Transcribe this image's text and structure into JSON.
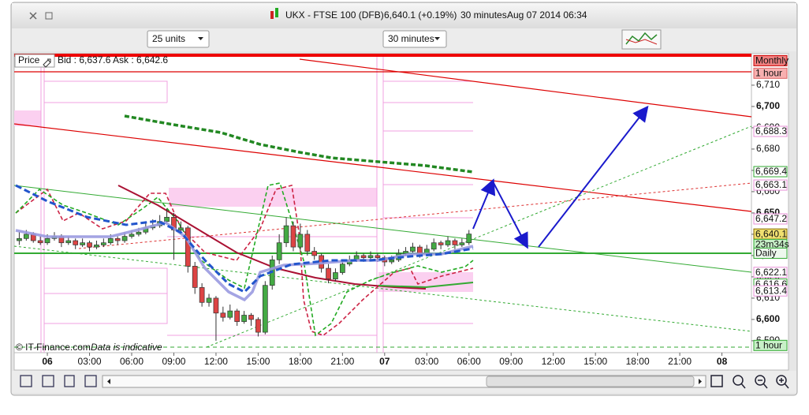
{
  "window": {
    "symbol": "UKX - FTSE 100 (DFB)",
    "price": "6,640.1 (+0.19%)",
    "period": "30 minutes",
    "date": "Aug 07 2014 06:34"
  },
  "toolbar": {
    "units_select": "25 units",
    "period_select": "30 minutes"
  },
  "chart_data": {
    "type": "candlestick",
    "legend_label": "Price",
    "quote": "Bid : 6,637.6 Ask : 6,642.6",
    "credit": "© IT-Finance.com",
    "disclaimer": "Data is indicative",
    "up_color": "#44aa44",
    "down_color": "#dd4444",
    "xlim": [
      -2.36,
      50.1
    ],
    "ylim": [
      6584.4,
      6724.8
    ],
    "xticks": [
      {
        "value": 0,
        "label": "06"
      },
      {
        "value": 3,
        "label": "03:00"
      },
      {
        "value": 6,
        "label": "06:00"
      },
      {
        "value": 9,
        "label": "09:00"
      },
      {
        "value": 12,
        "label": "12:00"
      },
      {
        "value": 15,
        "label": "15:00"
      },
      {
        "value": 18,
        "label": "18:00"
      },
      {
        "value": 21,
        "label": "21:00"
      },
      {
        "value": 24,
        "label": "07"
      },
      {
        "value": 27,
        "label": "03:00"
      },
      {
        "value": 30,
        "label": "06:00"
      },
      {
        "value": 33,
        "label": "09:00"
      },
      {
        "value": 36,
        "label": "12:00"
      },
      {
        "value": 39,
        "label": "15:00"
      },
      {
        "value": 42,
        "label": "18:00"
      },
      {
        "value": 45,
        "label": "21:00"
      },
      {
        "value": 48,
        "label": "08"
      }
    ],
    "yticks": [
      {
        "value": 6590,
        "label": "6,590"
      },
      {
        "value": 6600,
        "label": "6,600"
      },
      {
        "value": 6610,
        "label": "6,610"
      },
      {
        "value": 6620,
        "label": "6,620"
      },
      {
        "value": 6630,
        "label": "6,630"
      },
      {
        "value": 6640,
        "label": "6,640"
      },
      {
        "value": 6650,
        "label": "6,650"
      },
      {
        "value": 6660,
        "label": "6,660"
      },
      {
        "value": 6670,
        "label": "6,670"
      },
      {
        "value": 6680,
        "label": "6,680"
      },
      {
        "value": 6690,
        "label": "6,690"
      },
      {
        "value": 6700,
        "label": "6,700"
      },
      {
        "value": 6710,
        "label": "6,710"
      }
    ],
    "x": [
      -2,
      -1.5,
      -1,
      -0.5,
      0,
      0.5,
      1,
      1.5,
      2,
      2.5,
      3,
      3.5,
      4,
      4.5,
      5,
      5.5,
      6,
      6.5,
      7,
      7.5,
      8,
      8.5,
      9,
      9.5,
      10,
      10.5,
      11,
      11.5,
      12,
      12.5,
      13,
      13.5,
      14,
      14.5,
      15,
      15.5,
      16,
      16.5,
      17,
      17.5,
      18,
      18.5,
      19,
      19.5,
      20,
      20.5,
      21,
      21.5,
      22,
      22.5,
      23,
      23.5,
      24,
      24.5,
      25,
      25.5,
      26,
      26.5,
      27,
      27.5,
      28,
      28.5,
      29,
      29.5,
      30
    ],
    "ohlc": [
      [
        6637,
        6641,
        6635,
        6638
      ],
      [
        6638,
        6642,
        6637,
        6640
      ],
      [
        6640,
        6641,
        6636,
        6637
      ],
      [
        6637,
        6639,
        6635,
        6636
      ],
      [
        6636,
        6640,
        6635,
        6638
      ],
      [
        6638,
        6641,
        6637,
        6639
      ],
      [
        6639,
        6640,
        6634,
        6636
      ],
      [
        6636,
        6639,
        6635,
        6637
      ],
      [
        6637,
        6638,
        6633,
        6635
      ],
      [
        6635,
        6638,
        6634,
        6636
      ],
      [
        6636,
        6637,
        6632,
        6634
      ],
      [
        6634,
        6637,
        6633,
        6635
      ],
      [
        6635,
        6638,
        6634,
        6636
      ],
      [
        6636,
        6640,
        6635,
        6638
      ],
      [
        6638,
        6639,
        6635,
        6637
      ],
      [
        6637,
        6641,
        6636,
        6639
      ],
      [
        6639,
        6642,
        6638,
        6640
      ],
      [
        6640,
        6643,
        6639,
        6641
      ],
      [
        6641,
        6646,
        6640,
        6643
      ],
      [
        6643,
        6647,
        6642,
        6644
      ],
      [
        6644,
        6649,
        6643,
        6646
      ],
      [
        6646,
        6652,
        6645,
        6648
      ],
      [
        6648,
        6650,
        6628,
        6642
      ],
      [
        6642,
        6646,
        6640,
        6643
      ],
      [
        6643,
        6644,
        6622,
        6625
      ],
      [
        6625,
        6627,
        6612,
        6615
      ],
      [
        6615,
        6617,
        6606,
        6608
      ],
      [
        6608,
        6612,
        6606,
        6610
      ],
      [
        6610,
        6611,
        6590,
        6603
      ],
      [
        6603,
        6606,
        6599,
        6601
      ],
      [
        6601,
        6607,
        6600,
        6604
      ],
      [
        6604,
        6605,
        6597,
        6599
      ],
      [
        6599,
        6604,
        6598,
        6602
      ],
      [
        6602,
        6603,
        6597,
        6600
      ],
      [
        6600,
        6601,
        6592,
        6594
      ],
      [
        6594,
        6618,
        6593,
        6616
      ],
      [
        6616,
        6630,
        6614,
        6628
      ],
      [
        6628,
        6640,
        6626,
        6636
      ],
      [
        6636,
        6648,
        6634,
        6644
      ],
      [
        6644,
        6646,
        6632,
        6634
      ],
      [
        6634,
        6645,
        6632,
        6640
      ],
      [
        6640,
        6642,
        6630,
        6632
      ],
      [
        6632,
        6634,
        6628,
        6630
      ],
      [
        6630,
        6631,
        6622,
        6624
      ],
      [
        6624,
        6626,
        6617,
        6619
      ],
      [
        6619,
        6624,
        6618,
        6622
      ],
      [
        6622,
        6628,
        6621,
        6626
      ],
      [
        6626,
        6630,
        6625,
        6628
      ],
      [
        6628,
        6632,
        6627,
        6630
      ],
      [
        6630,
        6631,
        6627,
        6629
      ],
      [
        6629,
        6632,
        6628,
        6630
      ],
      [
        6630,
        6631,
        6627,
        6629
      ],
      [
        6629,
        6630,
        6625,
        6627
      ],
      [
        6627,
        6630,
        6626,
        6628
      ],
      [
        6628,
        6633,
        6627,
        6631
      ],
      [
        6631,
        6634,
        6630,
        6632
      ],
      [
        6632,
        6636,
        6631,
        6634
      ],
      [
        6634,
        6635,
        6629,
        6631
      ],
      [
        6631,
        6635,
        6630,
        6633
      ],
      [
        6633,
        6638,
        6632,
        6636
      ],
      [
        6636,
        6637,
        6633,
        6635
      ],
      [
        6635,
        6639,
        6634,
        6637
      ],
      [
        6637,
        6638,
        6633,
        6635
      ],
      [
        6635,
        6638,
        6634,
        6636
      ],
      [
        6636,
        6642,
        6635,
        6640.1
      ]
    ],
    "price_tags": [
      {
        "value": 6721.5,
        "label": "Monthly",
        "bg": "#f08080",
        "border": "#cc0000"
      },
      {
        "value": 6715.6,
        "label": "1 hour",
        "bg": "#f8b0b0",
        "border": "#dd6666"
      },
      {
        "value": 6688.3,
        "label": "6,688.3",
        "bg": "#ffffff",
        "border": "#e890d8"
      },
      {
        "value": 6669.4,
        "label": "6,669.4",
        "bg": "#ffffff",
        "border": "#33aa33"
      },
      {
        "value": 6663.1,
        "label": "6,663.1",
        "bg": "#ffffff",
        "border": "#e890d8"
      },
      {
        "value": 6647.2,
        "label": "6,647.2",
        "bg": "#ffffff",
        "border": "#e890d8"
      },
      {
        "value": 6640.1,
        "label": "6,640.1",
        "bg": "#f0e070",
        "border": "#886600"
      },
      {
        "value": 6635.2,
        "label": "23m34s",
        "bg": "#c8f0c8",
        "border": "#33aa33"
      },
      {
        "value": 6631.1,
        "label": "Daily",
        "bg": "#eef8ee",
        "border": "#33aa33"
      },
      {
        "value": 6622.1,
        "label": "6,622.1",
        "bg": "#ffffff",
        "border": "#e890d8"
      },
      {
        "value": 6616.6,
        "label": "6,616.6",
        "bg": "#ffffff",
        "border": "#33aa33"
      },
      {
        "value": 6613.4,
        "label": "6,613.4",
        "bg": "#ffffff",
        "border": "#e890d8"
      },
      {
        "value": 6587.8,
        "label": "1 hour",
        "bg": "#c8f0c8",
        "border": "#33aa33"
      }
    ]
  }
}
